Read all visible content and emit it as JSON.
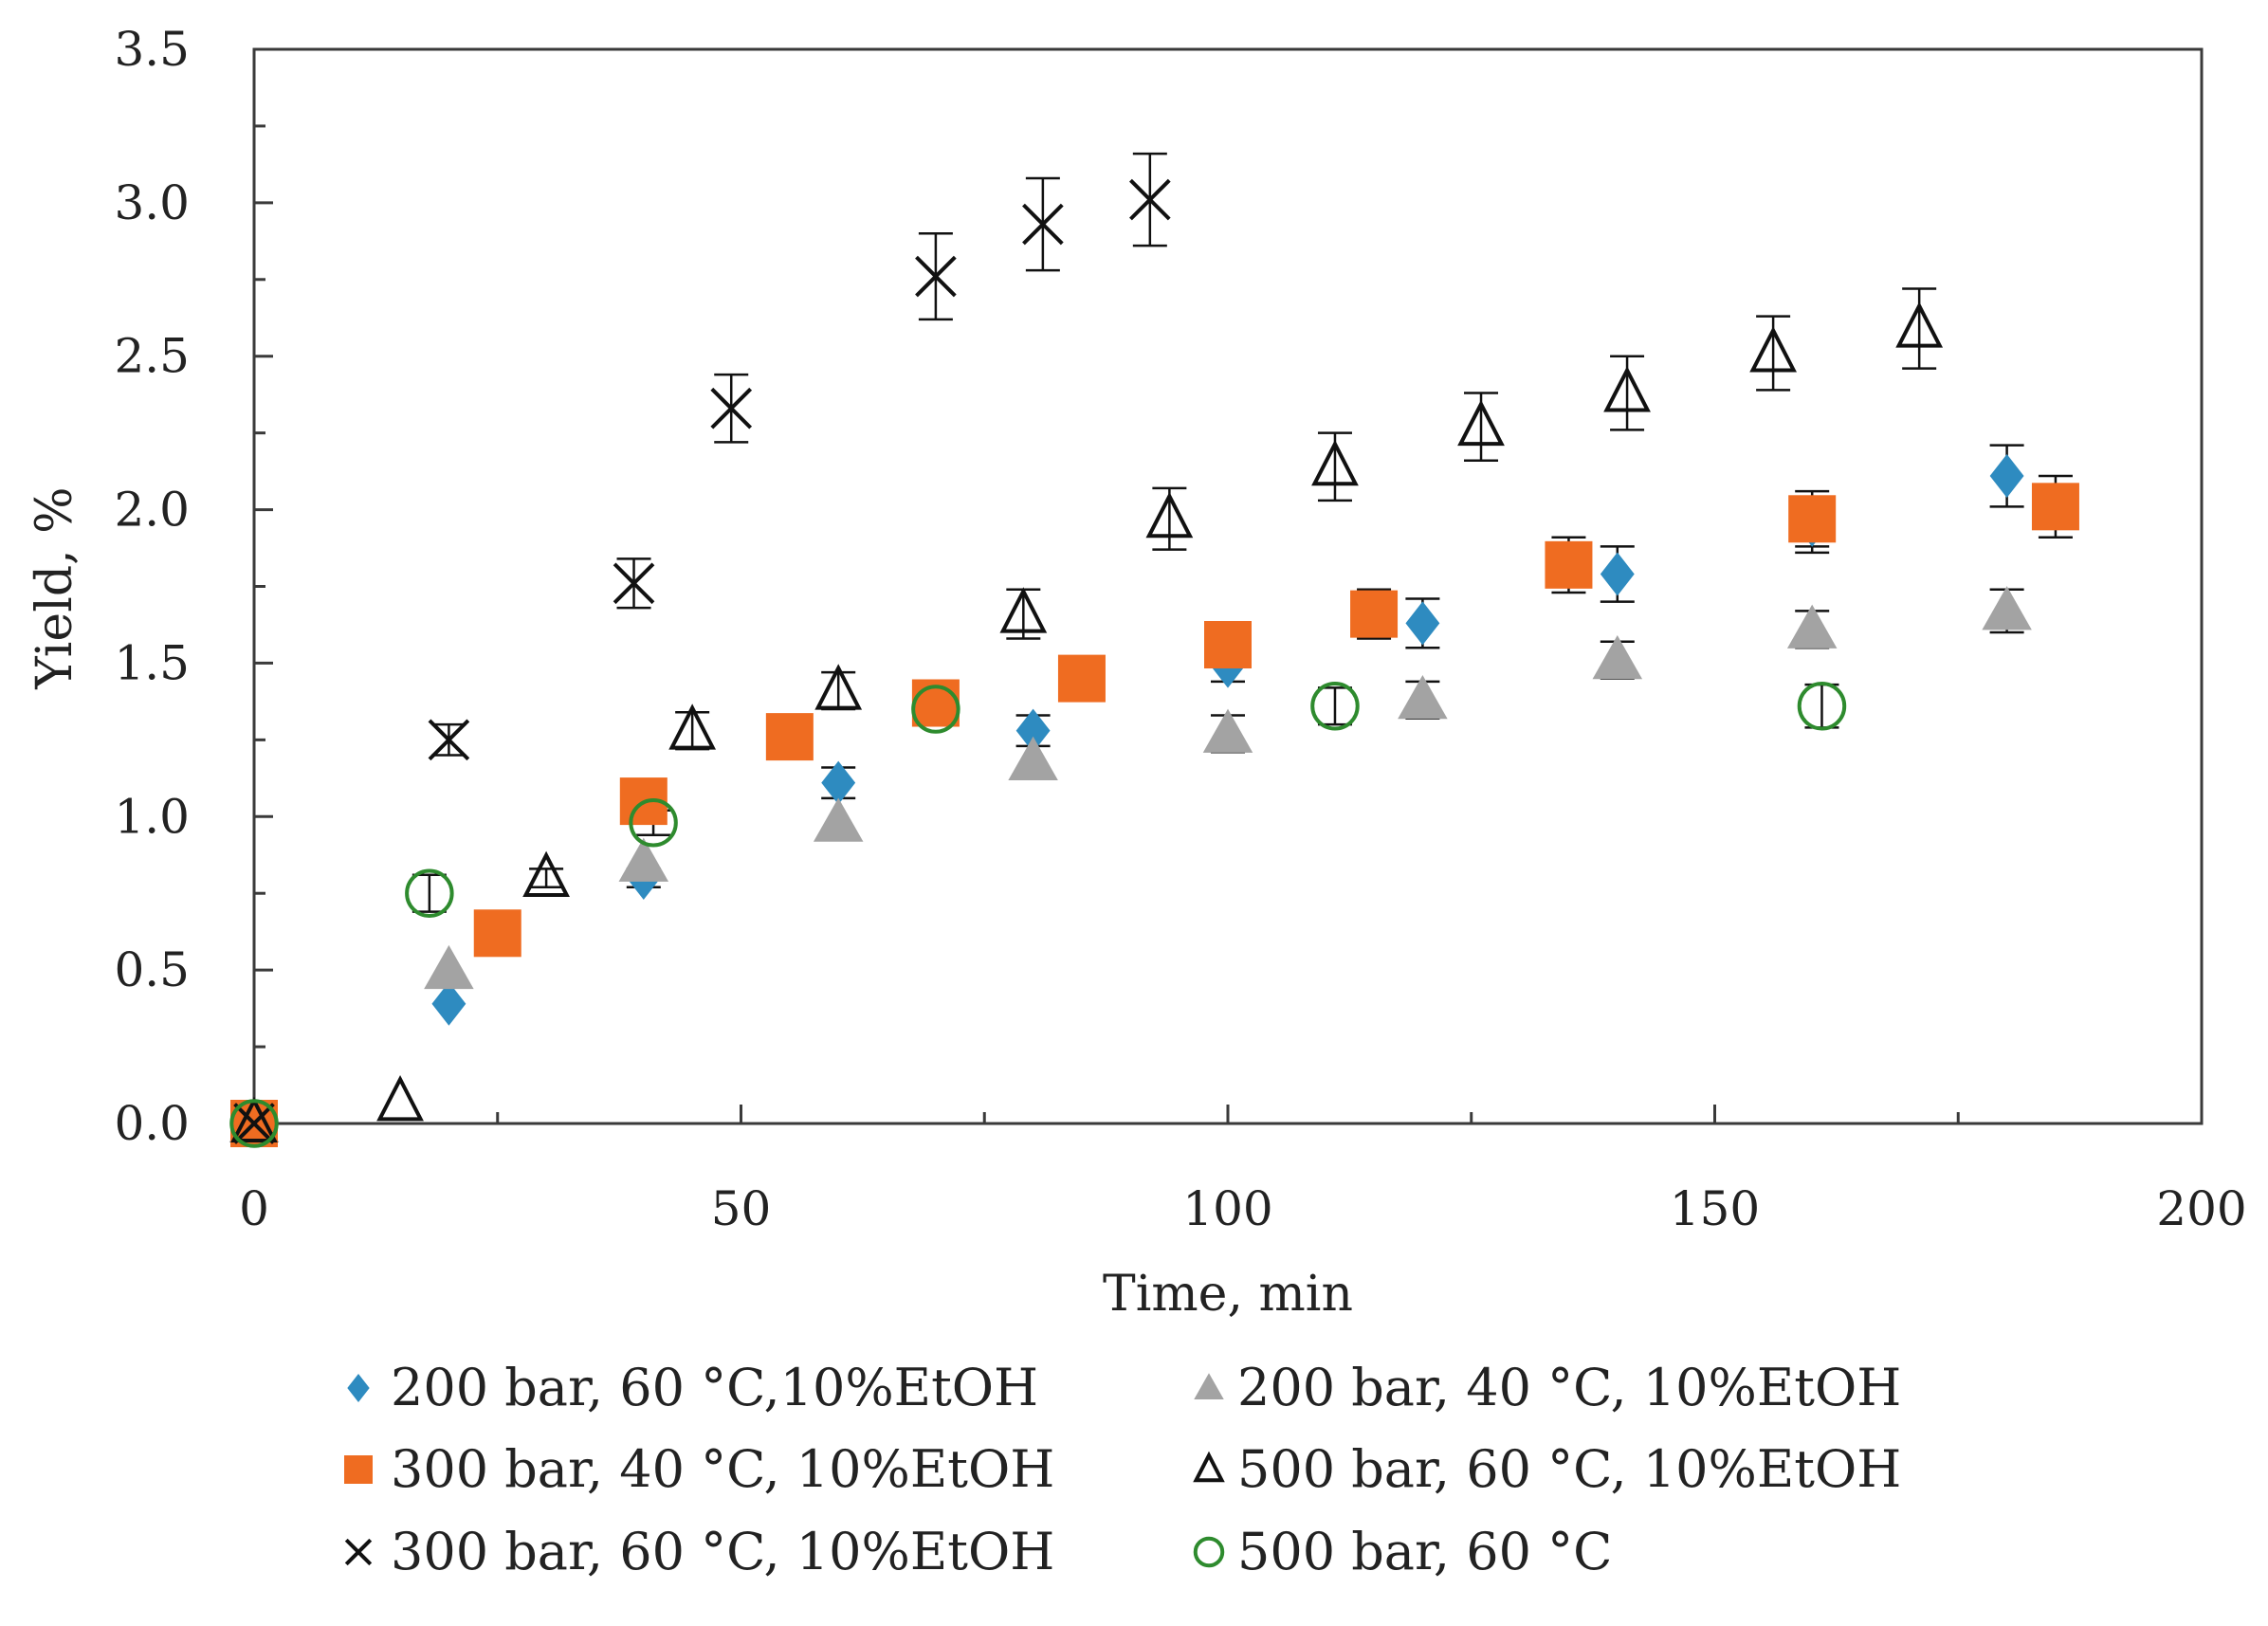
{
  "chart_data": {
    "type": "scatter",
    "title": "",
    "xlabel": "Time, min",
    "ylabel": "Yield, %",
    "xlim": [
      0,
      200
    ],
    "ylim": [
      0,
      3.5
    ],
    "xticks": [
      0,
      50,
      100,
      150,
      200
    ],
    "yticks": [
      0.0,
      0.5,
      1.0,
      1.5,
      2.0,
      2.5,
      3.0,
      3.5
    ],
    "xtick_labels": [
      "0",
      "50",
      "100",
      "150",
      "200"
    ],
    "ytick_labels": [
      "0.0",
      "0.5",
      "1.0",
      "1.5",
      "2.0",
      "2.5",
      "3.0",
      "3.5"
    ],
    "grid": false,
    "legend_position": "bottom",
    "series": [
      {
        "name": "200 bar, 60 °C,10%EtOH",
        "marker": "diamond",
        "color": "#2e8bc0",
        "filled": true,
        "x": [
          0,
          20,
          40,
          60,
          80,
          100,
          120,
          140,
          160,
          180
        ],
        "y": [
          0,
          0.39,
          0.8,
          1.11,
          1.28,
          1.49,
          1.63,
          1.79,
          1.95,
          2.11
        ],
        "err": [
          0,
          0,
          0.03,
          0.05,
          0.05,
          0.05,
          0.08,
          0.09,
          0.09,
          0.1
        ]
      },
      {
        "name": "200 bar, 40 °C, 10%EtOH",
        "marker": "triangle",
        "color": "#a3a3a3",
        "filled": true,
        "x": [
          0,
          20,
          40,
          60,
          80,
          100,
          120,
          140,
          160,
          180
        ],
        "y": [
          0,
          0.5,
          0.85,
          0.98,
          1.18,
          1.27,
          1.38,
          1.51,
          1.61,
          1.67
        ],
        "err": [
          0,
          0,
          0,
          0,
          0,
          0.06,
          0.06,
          0.06,
          0.06,
          0.07
        ]
      },
      {
        "name": "300 bar, 40 °C, 10%EtOH",
        "marker": "square",
        "color": "#ef6c21",
        "filled": true,
        "x": [
          0,
          25,
          40,
          55,
          70,
          85,
          100,
          115,
          135,
          160,
          185
        ],
        "y": [
          0,
          0.62,
          1.05,
          1.26,
          1.37,
          1.45,
          1.56,
          1.66,
          1.82,
          1.97,
          2.01
        ],
        "err": [
          0,
          0,
          0,
          0,
          0,
          0.06,
          0.06,
          0.08,
          0.09,
          0.09,
          0.1
        ]
      },
      {
        "name": "500 bar, 60 °C, 10%EtOH",
        "marker": "triangle-open",
        "color": "#111111",
        "filled": false,
        "x": [
          0,
          15,
          30,
          45,
          60,
          79,
          94,
          111,
          126,
          141,
          156,
          171
        ],
        "y": [
          0,
          0.07,
          0.8,
          1.28,
          1.41,
          1.66,
          1.97,
          2.14,
          2.27,
          2.38,
          2.51,
          2.59
        ],
        "err": [
          0,
          0,
          0.03,
          0.06,
          0.06,
          0.08,
          0.1,
          0.11,
          0.11,
          0.12,
          0.12,
          0.13
        ]
      },
      {
        "name": "300 bar, 60 °C, 10%EtOH",
        "marker": "x",
        "color": "#111111",
        "filled": false,
        "x": [
          0,
          20,
          39,
          49,
          70,
          81,
          92
        ],
        "y": [
          0,
          1.25,
          1.76,
          2.33,
          2.76,
          2.93,
          3.01
        ],
        "err": [
          0,
          0.05,
          0.08,
          0.11,
          0.14,
          0.15,
          0.15
        ]
      },
      {
        "name": "500 bar, 60 °C",
        "marker": "circle-open",
        "color": "#2e8b2e",
        "filled": false,
        "x": [
          0,
          18,
          41,
          70,
          111,
          161
        ],
        "y": [
          0,
          0.75,
          0.98,
          1.35,
          1.36,
          1.36
        ],
        "err": [
          0,
          0.06,
          0.04,
          0.04,
          0.06,
          0.07
        ]
      }
    ]
  }
}
